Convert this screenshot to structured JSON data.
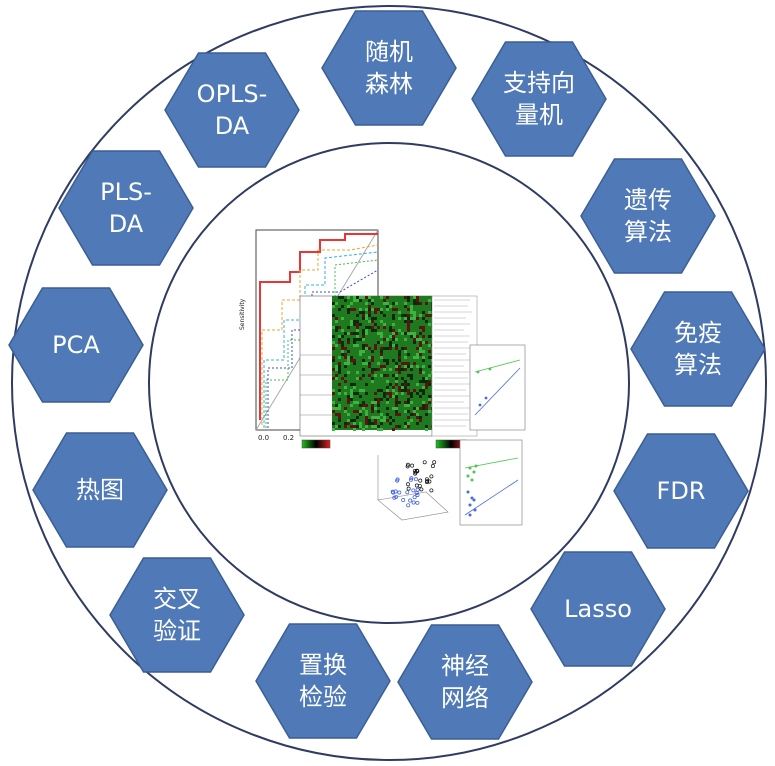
{
  "diagram": {
    "colors": {
      "ring_stroke": "#2f3b62",
      "hex_fill": "#4f79b7",
      "hex_stroke": "#3b5f95",
      "hex_text": "#ffffff"
    },
    "methods": [
      {
        "id": "random-forest",
        "lines": [
          "随机",
          "森林"
        ]
      },
      {
        "id": "svm",
        "lines": [
          "支持向",
          "量机"
        ]
      },
      {
        "id": "genetic-algorithm",
        "lines": [
          "遗传",
          "算法"
        ]
      },
      {
        "id": "immune-algorithm",
        "lines": [
          "免疫",
          "算法"
        ]
      },
      {
        "id": "fdr",
        "lines": [
          "FDR"
        ]
      },
      {
        "id": "lasso",
        "lines": [
          "Lasso"
        ]
      },
      {
        "id": "neural-network",
        "lines": [
          "神经",
          "网络"
        ]
      },
      {
        "id": "permutation-test",
        "lines": [
          "置换",
          "检验"
        ]
      },
      {
        "id": "cross-validation",
        "lines": [
          "交叉",
          "验证"
        ]
      },
      {
        "id": "heatmap",
        "lines": [
          "热图"
        ]
      },
      {
        "id": "pca",
        "lines": [
          "PCA"
        ]
      },
      {
        "id": "pls-da",
        "lines": [
          "PLS-",
          "DA"
        ]
      },
      {
        "id": "opls-da",
        "lines": [
          "OPLS-",
          "DA"
        ]
      }
    ],
    "center_image": {
      "roc_axis": {
        "ylabel": "Sensitivity",
        "x_ticks": [
          "0.0",
          "0.2"
        ]
      }
    }
  }
}
